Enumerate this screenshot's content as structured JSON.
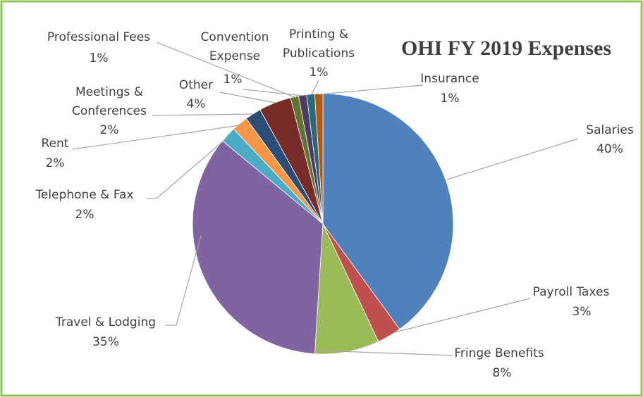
{
  "chart_data": {
    "type": "pie",
    "title": "OHI FY 2019 Expenses",
    "categories": [
      "Salaries",
      "Payroll Taxes",
      "Fringe Benefits",
      "Travel & Lodging",
      "Telephone & Fax",
      "Rent",
      "Meetings & Conferences",
      "Other",
      "Professional Fees",
      "Convention Expense",
      "Printing & Publications",
      "Insurance"
    ],
    "values": [
      40,
      3,
      8,
      35,
      2,
      2,
      2,
      4,
      1,
      1,
      1,
      1
    ],
    "value_labels": [
      "40%",
      "3%",
      "8%",
      "35%",
      "2%",
      "2%",
      "2%",
      "4%",
      "1%",
      "1%",
      "1%",
      "1%"
    ],
    "colors": [
      "#4f81bd",
      "#c0504d",
      "#9bbb59",
      "#8064a2",
      "#4bacc6",
      "#f79646",
      "#2c4d75",
      "#772c2a",
      "#5f7530",
      "#4d3b62",
      "#276a7c",
      "#b65708"
    ]
  }
}
